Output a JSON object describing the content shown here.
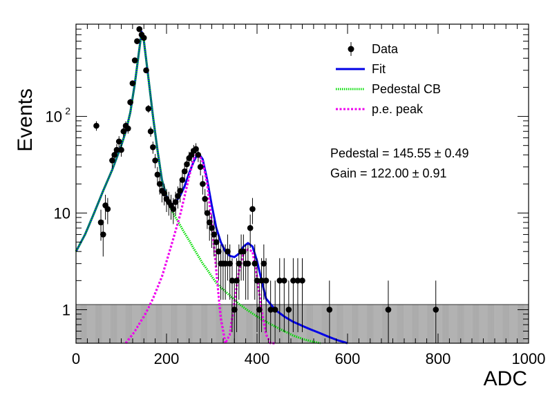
{
  "chart_data": {
    "type": "scatter",
    "title": "",
    "xlabel": "ADC",
    "ylabel": "Events",
    "xlim": [
      0,
      1000
    ],
    "ylim": [
      0.45,
      900
    ],
    "yscale": "log",
    "grid": false,
    "legend_placement": "top-right",
    "x_ticks": [
      {
        "value": 0,
        "label": "0"
      },
      {
        "value": 200,
        "label": "200"
      },
      {
        "value": 400,
        "label": "400"
      },
      {
        "value": 600,
        "label": "600"
      },
      {
        "value": 800,
        "label": "800"
      },
      {
        "value": 1000,
        "label": "1000"
      }
    ],
    "y_ticks": [
      {
        "value": 1,
        "label": "1"
      },
      {
        "value": 10,
        "label": "10"
      },
      {
        "value": 100,
        "label": "10",
        "sup": "2"
      }
    ],
    "legend": [
      {
        "label": "Data",
        "kind": "marker",
        "color": "#000000"
      },
      {
        "label": "Fit",
        "kind": "line",
        "color": "#0000e6"
      },
      {
        "label": "Pedestal CB",
        "kind": "dotted",
        "color": "#00dd00"
      },
      {
        "label": "p.e. peak",
        "kind": "dashed",
        "color": "#ee00ee"
      }
    ],
    "annotations": [
      {
        "text": "Pedestal = 145.55 ± 0.49"
      },
      {
        "text": "Gain = 122.00 ± 0.91"
      }
    ],
    "series": [
      {
        "name": "Data",
        "kind": "points",
        "color": "#000000",
        "x": [
          45,
          55,
          60,
          65,
          70,
          80,
          85,
          90,
          95,
          100,
          105,
          110,
          115,
          120,
          125,
          130,
          135,
          140,
          145,
          150,
          155,
          160,
          165,
          170,
          175,
          180,
          185,
          190,
          195,
          200,
          205,
          210,
          215,
          220,
          225,
          230,
          235,
          240,
          245,
          250,
          255,
          260,
          265,
          270,
          275,
          280,
          285,
          290,
          295,
          300,
          305,
          310,
          315,
          320,
          325,
          330,
          335,
          340,
          345,
          350,
          355,
          360,
          365,
          370,
          375,
          380,
          385,
          390,
          395,
          400,
          405,
          410,
          415,
          420,
          430,
          440,
          450,
          460,
          470,
          480,
          490,
          500,
          560,
          690,
          795
        ],
        "y": [
          80,
          8,
          6,
          12,
          11,
          35,
          40,
          45,
          55,
          45,
          70,
          80,
          75,
          140,
          220,
          380,
          600,
          800,
          700,
          650,
          300,
          120,
          70,
          48,
          35,
          25,
          20,
          17,
          16,
          14,
          13,
          12,
          11,
          13,
          15,
          17,
          22,
          27,
          32,
          37,
          40,
          44,
          46,
          40,
          30,
          20,
          14,
          10,
          8,
          7,
          6,
          5,
          4,
          3,
          3,
          3,
          4,
          3,
          2,
          1,
          2,
          3,
          4,
          4,
          3,
          3,
          7,
          11,
          3,
          2,
          1,
          2,
          3,
          2,
          1,
          1,
          2,
          2,
          1,
          2,
          2,
          2,
          1,
          1,
          1
        ]
      },
      {
        "name": "Fit",
        "kind": "line",
        "color": "#0000e6",
        "x": [
          0,
          20,
          40,
          60,
          80,
          100,
          110,
          120,
          130,
          140,
          145,
          150,
          160,
          170,
          180,
          190,
          200,
          210,
          220,
          230,
          240,
          250,
          260,
          265,
          270,
          280,
          290,
          300,
          310,
          320,
          330,
          340,
          350,
          360,
          370,
          380,
          390,
          400,
          410,
          420,
          440,
          460,
          480,
          500,
          520,
          540,
          560,
          580,
          600
        ],
        "y": [
          4,
          6,
          10,
          17,
          28,
          50,
          70,
          110,
          220,
          500,
          750,
          600,
          250,
          100,
          45,
          22,
          15,
          12,
          13,
          15,
          19,
          26,
          34,
          38,
          42,
          36,
          22,
          12,
          7,
          5,
          4,
          3.6,
          3.5,
          3.8,
          4.5,
          4.9,
          4.5,
          3.2,
          2,
          1.3,
          1.0,
          0.85,
          0.75,
          0.68,
          0.62,
          0.57,
          0.52,
          0.48,
          0.45
        ]
      },
      {
        "name": "Pedestal CB",
        "kind": "dotted",
        "color": "#00dd00",
        "x": [
          0,
          20,
          40,
          60,
          80,
          100,
          110,
          120,
          130,
          140,
          145,
          150,
          160,
          170,
          180,
          190,
          200,
          210,
          220,
          230,
          240,
          250,
          260,
          270,
          280,
          290,
          300,
          310,
          320,
          340,
          360,
          380,
          400,
          420,
          440,
          460,
          480,
          500,
          520,
          540
        ],
        "y": [
          4,
          6,
          10,
          17,
          28,
          50,
          70,
          110,
          220,
          500,
          750,
          600,
          250,
          100,
          45,
          22,
          15,
          11,
          9,
          7.5,
          6.2,
          5.2,
          4.3,
          3.6,
          3.0,
          2.6,
          2.2,
          1.9,
          1.7,
          1.4,
          1.15,
          0.98,
          0.85,
          0.75,
          0.67,
          0.6,
          0.54,
          0.5,
          0.47,
          0.45
        ]
      },
      {
        "name": "p.e. peak",
        "kind": "dashed",
        "color": "#ee00ee",
        "x": [
          110,
          130,
          150,
          170,
          190,
          210,
          230,
          240,
          250,
          260,
          265,
          270,
          280,
          290,
          300,
          310,
          320,
          330,
          340,
          350,
          360,
          370,
          380,
          390,
          400,
          410,
          420,
          430,
          440
        ],
        "y": [
          0.45,
          0.6,
          0.85,
          1.3,
          2.2,
          4.5,
          9.5,
          15,
          24,
          36,
          40,
          41,
          34,
          20,
          8,
          2.5,
          0.8,
          0.45,
          0.55,
          1.2,
          2.5,
          3.8,
          4.2,
          4.0,
          2.2,
          1.0,
          0.55,
          0.45,
          0.45
        ]
      }
    ]
  }
}
